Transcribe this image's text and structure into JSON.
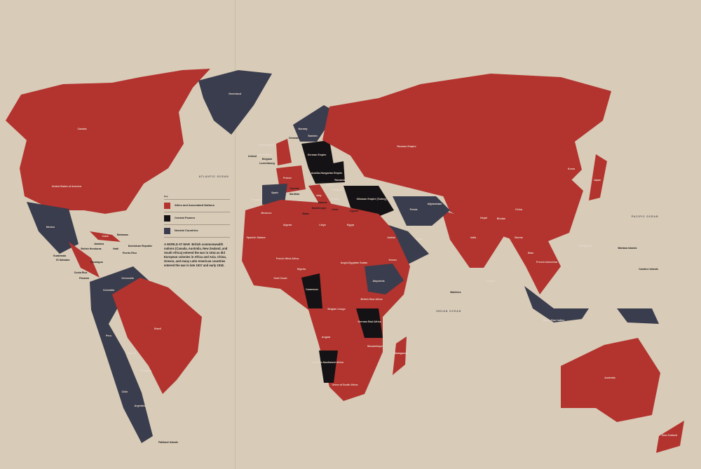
{
  "colors": {
    "background": "#d8cbb8",
    "allies": "#b3332e",
    "central": "#141214",
    "neutral": "#3a3d4d"
  },
  "legend": {
    "key_label": "Key",
    "items": [
      {
        "label": "Allies and Associated Nations",
        "color": "#b3332e"
      },
      {
        "label": "Central Powers",
        "color": "#141214"
      },
      {
        "label": "Neutral Countries",
        "color": "#3a3d4d"
      }
    ],
    "heading": "A WORLD AT WAR",
    "text": "British commonwealth nations (Canada, Australia, New Zealand, and South Africa) entered the war in 1914 as did European colonies in Africa and Asia. China, Greece, and many Latin American countries entered the war in late 1917 and early 1918."
  },
  "oceans": [
    "Atlantic Ocean",
    "Pacific Ocean",
    "Indian Ocean"
  ],
  "labels": {
    "allies": [
      "Canada",
      "United States of America",
      "Brazil",
      "Great Britain",
      "France",
      "Italy",
      "Russian Empire",
      "China",
      "India",
      "Japan",
      "Korea",
      "Australia",
      "New Zealand",
      "French West Africa",
      "Algeria",
      "Libya",
      "Egypt",
      "Anglo-Egyptian Sudan",
      "Belgian Congo",
      "Angola",
      "Union of South Africa",
      "British East Africa",
      "Madagascar",
      "French Indochina",
      "Siam",
      "Burma",
      "Nepal",
      "Bhutan",
      "Ceylon",
      "Cuba",
      "Portugal",
      "Serbia",
      "Greece",
      "Romania",
      "Nigeria",
      "Gold Coast",
      "Morocco",
      "Mozambique",
      "Philippines"
    ],
    "central": [
      "German Empire",
      "Austria-Hungarian Empire",
      "Bulgaria",
      "Ottoman Empire (Turkey)",
      "Cameroon",
      "German East Africa",
      "German Southwest Africa"
    ],
    "neutral": [
      "Greenland",
      "Norway",
      "Sweden",
      "Spain",
      "Mexico",
      "Venezuela",
      "Colombia",
      "Peru",
      "Bolivia",
      "Chile",
      "Argentina",
      "Paraguay",
      "Persia",
      "Afghanistan",
      "Arabia",
      "Abyssinia",
      "Oman",
      "Yemen",
      "Spanish Sahara",
      "Netherlands",
      "Dutch East Indies"
    ],
    "dark_text": [
      "Bahamas",
      "Dominican Republic",
      "Puerto Rico",
      "Jamaica",
      "Haiti",
      "British Honduras",
      "Guatemala",
      "El Salvador",
      "Nicaragua",
      "Costa Rica",
      "Panama",
      "Ireland",
      "Belgium",
      "Luxembourg",
      "Denmark",
      "Montenegro",
      "Albania",
      "Crete",
      "Cyprus",
      "Corsica",
      "Sardinia",
      "Malta",
      "Maldives",
      "Mariana Islands",
      "Caroline Islands",
      "Falkland Islands"
    ]
  }
}
